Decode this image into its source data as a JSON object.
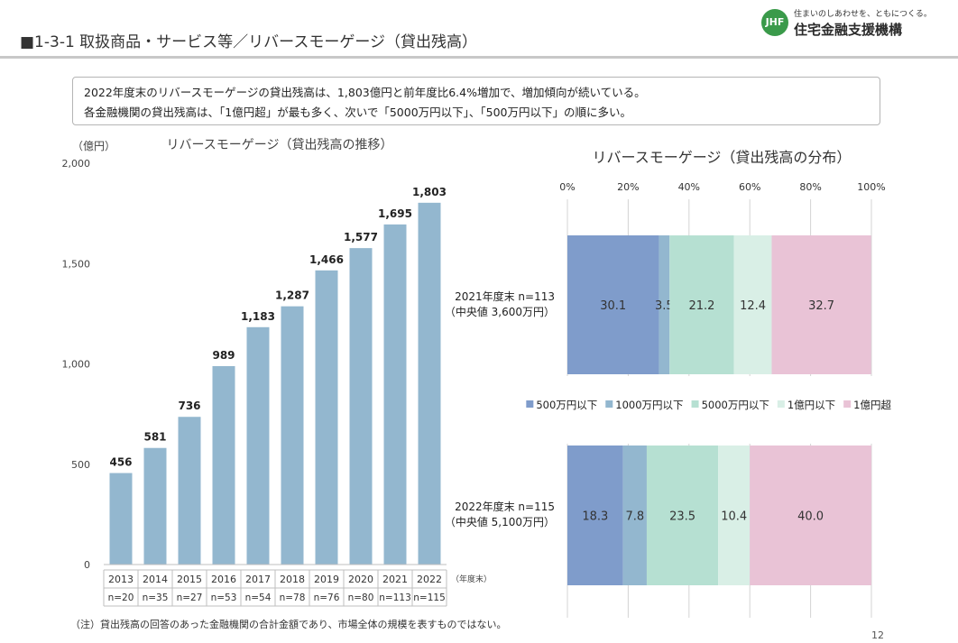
{
  "header": {
    "title": "■1-3-1 取扱商品・サービス等／リバースモーゲージ（貸出残高）",
    "logo_mark": "JHF",
    "logo_tagline": "住まいのしあわせを、ともにつくる。",
    "logo_name": "住宅金融支援機構"
  },
  "summary": {
    "line1": "2022年度末のリバースモーゲージの貸出残高は、1,803億円と前年度比6.4%増加で、増加傾向が続いている。",
    "line2": "各金融機関の貸出残高は、「1億円超」が最も多く、次いで「5000万円以下」、「500万円以下」の順に多い。"
  },
  "footnote": "（注）貸出残高の回答のあった金融機関の合計金額であり、市場全体の規模を表すものではない。",
  "page_number": "12",
  "colors": {
    "bar": "#93b7cf",
    "seg1": "#7f9ccb",
    "seg2": "#93b7cf",
    "seg3": "#b6e0d2",
    "seg4": "#d9efe6",
    "seg5": "#e9c3d6"
  },
  "chart_data": [
    {
      "type": "bar",
      "title": "リバースモーゲージ（貸出残高の推移）",
      "ylabel": "（億円）",
      "xlabel": "（年度末）",
      "categories": [
        "2013",
        "2014",
        "2015",
        "2016",
        "2017",
        "2018",
        "2019",
        "2020",
        "2021",
        "2022"
      ],
      "values": [
        456,
        581,
        736,
        989,
        1183,
        1287,
        1466,
        1577,
        1695,
        1803
      ],
      "value_labels": [
        "456",
        "581",
        "736",
        "989",
        "1,183",
        "1,287",
        "1,466",
        "1,577",
        "1,695",
        "1,803"
      ],
      "n_labels": [
        "n=20",
        "n=35",
        "n=27",
        "n=53",
        "n=54",
        "n=78",
        "n=76",
        "n=80",
        "n=113",
        "n=115"
      ],
      "ylim": [
        0,
        2000
      ],
      "yticks": [
        "0",
        "500",
        "1,000",
        "1,500",
        "2,000"
      ]
    },
    {
      "type": "bar",
      "orientation": "horizontal-stacked-100",
      "title": "リバースモーゲージ（貸出残高の分布）",
      "xlim": [
        0,
        100
      ],
      "xticks": [
        "0%",
        "20%",
        "40%",
        "60%",
        "80%",
        "100%"
      ],
      "legend_position": "middle",
      "series_names": [
        "500万円以下",
        "1000万円以下",
        "5000万円以下",
        "1億円以下",
        "1億円超"
      ],
      "rows": [
        {
          "label1": "2021年度末 n=113",
          "label2": "（中央値 3,600万円）",
          "values": [
            30.1,
            3.5,
            21.2,
            12.4,
            32.7
          ]
        },
        {
          "label1": "2022年度末 n=115",
          "label2": "（中央値 5,100万円）",
          "values": [
            18.3,
            7.8,
            23.5,
            10.4,
            40.0
          ]
        }
      ]
    }
  ]
}
